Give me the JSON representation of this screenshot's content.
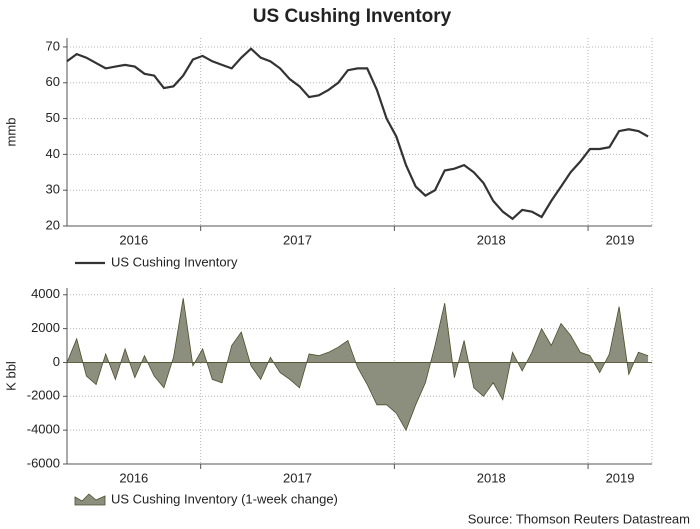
{
  "title": "US Cushing Inventory",
  "source": "Source: Thomson Reuters Datastream",
  "chart_data": [
    {
      "type": "line",
      "ylabel": "mmb",
      "x": [
        2016.31,
        2016.36,
        2016.41,
        2016.46,
        2016.51,
        2016.56,
        2016.61,
        2016.66,
        2016.71,
        2016.76,
        2016.81,
        2016.86,
        2016.91,
        2016.96,
        2017.01,
        2017.06,
        2017.11,
        2017.16,
        2017.21,
        2017.26,
        2017.31,
        2017.36,
        2017.41,
        2017.46,
        2017.51,
        2017.56,
        2017.61,
        2017.66,
        2017.71,
        2017.76,
        2017.81,
        2017.86,
        2017.91,
        2017.96,
        2018.01,
        2018.06,
        2018.11,
        2018.16,
        2018.21,
        2018.26,
        2018.31,
        2018.36,
        2018.41,
        2018.46,
        2018.51,
        2018.56,
        2018.61,
        2018.66,
        2018.71,
        2018.76,
        2018.81,
        2018.86,
        2018.91,
        2018.96,
        2019.01,
        2019.06,
        2019.11,
        2019.16,
        2019.21,
        2019.26,
        2019.31
      ],
      "xlim": [
        2016.31,
        2019.33
      ],
      "xticks": [
        2017,
        2018,
        2019
      ],
      "xtick_labels": [
        "2016",
        "2017",
        "2018",
        "2019"
      ],
      "ylim": [
        20,
        72.5
      ],
      "yticks": [
        20,
        30,
        40,
        50,
        60,
        70
      ],
      "grid": true,
      "series": [
        {
          "name": "US Cushing Inventory",
          "color": "#333333",
          "values": [
            66,
            68,
            67,
            65.5,
            64,
            64.5,
            65,
            64.5,
            62.5,
            62,
            58.5,
            59,
            62,
            66.5,
            67.5,
            66,
            65,
            64,
            67,
            69.5,
            67,
            66,
            64,
            61,
            59,
            56,
            56.5,
            58,
            60,
            63.5,
            64,
            64,
            58,
            50,
            45,
            37,
            31,
            28.5,
            30,
            35.5,
            36,
            37,
            35,
            32,
            27,
            24,
            22,
            24.5,
            24,
            22.5,
            27,
            31,
            35,
            38,
            41.5,
            41.5,
            42,
            46.5,
            47,
            46.5,
            45
          ]
        }
      ]
    },
    {
      "type": "area",
      "ylabel": "K bbl",
      "x": [
        2016.31,
        2016.36,
        2016.41,
        2016.46,
        2016.51,
        2016.56,
        2016.61,
        2016.66,
        2016.71,
        2016.76,
        2016.81,
        2016.86,
        2016.91,
        2016.96,
        2017.01,
        2017.06,
        2017.11,
        2017.16,
        2017.21,
        2017.26,
        2017.31,
        2017.36,
        2017.41,
        2017.46,
        2017.51,
        2017.56,
        2017.61,
        2017.66,
        2017.71,
        2017.76,
        2017.81,
        2017.86,
        2017.91,
        2017.96,
        2018.01,
        2018.06,
        2018.11,
        2018.16,
        2018.21,
        2018.26,
        2018.31,
        2018.36,
        2018.41,
        2018.46,
        2018.51,
        2018.56,
        2018.61,
        2018.66,
        2018.71,
        2018.76,
        2018.81,
        2018.86,
        2018.91,
        2018.96,
        2019.01,
        2019.06,
        2019.11,
        2019.16,
        2019.21,
        2019.26,
        2019.31
      ],
      "xlim": [
        2016.31,
        2019.33
      ],
      "xticks": [
        2017,
        2018,
        2019
      ],
      "xtick_labels": [
        "2016",
        "2017",
        "2018",
        "2019"
      ],
      "ylim": [
        -6000,
        4400
      ],
      "yticks": [
        -6000,
        -4000,
        -2000,
        0,
        2000,
        4000
      ],
      "grid": true,
      "series": [
        {
          "name": "US Cushing Inventory (1-week change)",
          "color": "#8c8f7e",
          "edge_color": "#4e4f2c",
          "values": [
            0,
            1400,
            -800,
            -1300,
            500,
            -1000,
            800,
            -900,
            400,
            -800,
            -1500,
            300,
            3800,
            -200,
            800,
            -1000,
            -1200,
            1000,
            1800,
            -200,
            -1000,
            300,
            -600,
            -1000,
            -1500,
            500,
            400,
            600,
            900,
            1300,
            -300,
            -1300,
            -2500,
            -2500,
            -3000,
            -4000,
            -2500,
            -1200,
            1000,
            3500,
            -900,
            1300,
            -1500,
            -2000,
            -1200,
            -2200,
            600,
            -500,
            600,
            2000,
            1000,
            2300,
            1600,
            600,
            400,
            -600,
            500,
            3300,
            -700,
            600,
            400
          ]
        }
      ]
    }
  ]
}
